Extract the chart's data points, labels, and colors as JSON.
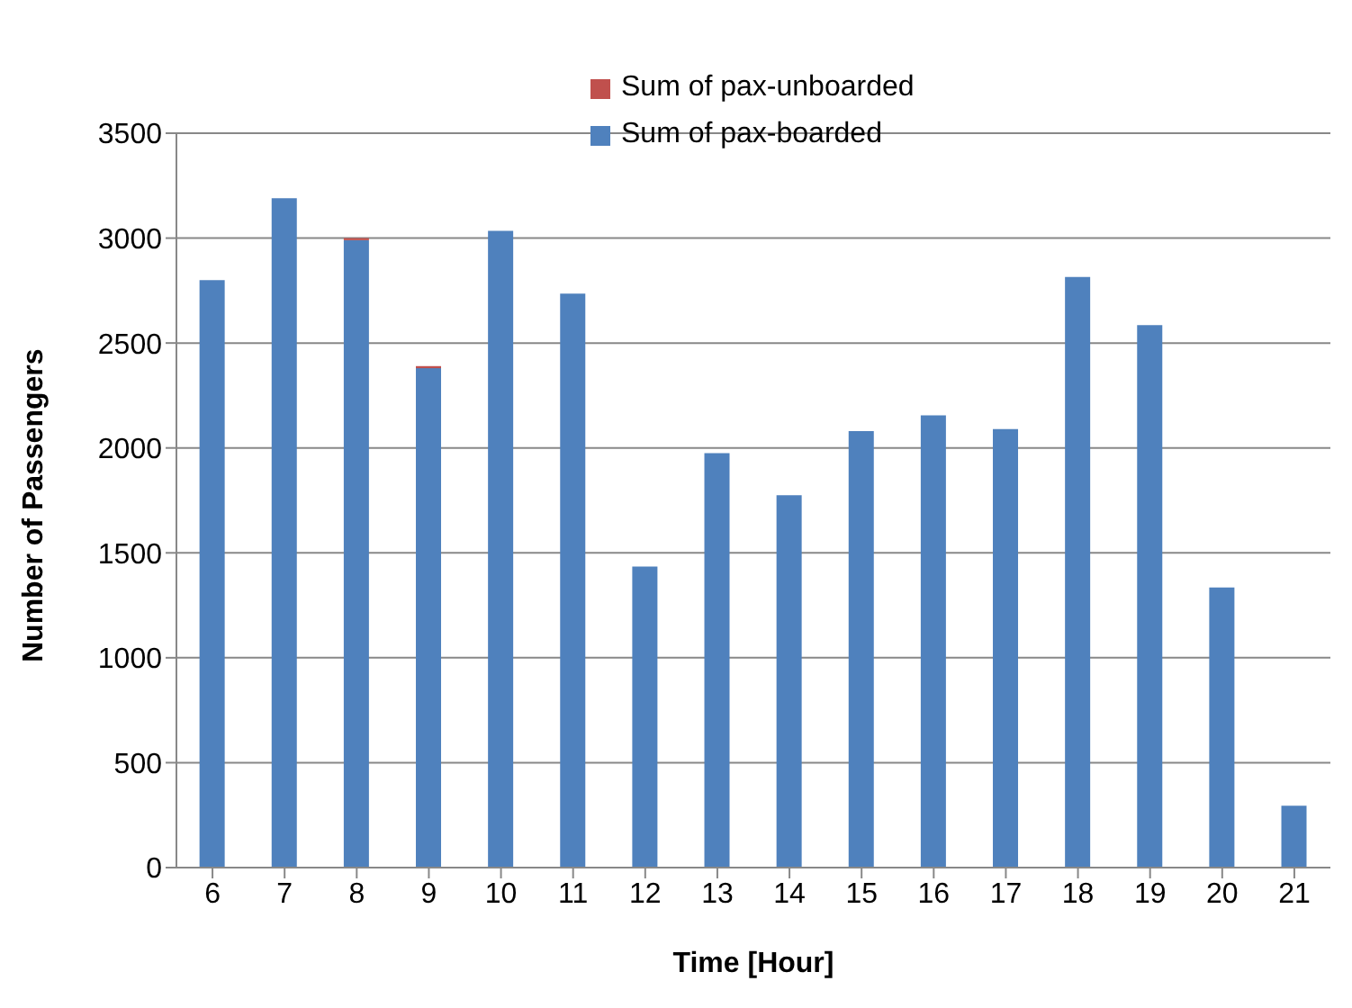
{
  "chart_data": {
    "type": "bar",
    "stacked": true,
    "xlabel": "Time [Hour]",
    "ylabel": "Number of Passengers",
    "categories": [
      "6",
      "7",
      "8",
      "9",
      "10",
      "11",
      "12",
      "13",
      "14",
      "15",
      "16",
      "17",
      "18",
      "19",
      "20",
      "21"
    ],
    "series": [
      {
        "name": "Sum of pax-boarded",
        "color": "#4f81bd",
        "values": [
          2800,
          3190,
          2990,
          2380,
          3035,
          2735,
          1435,
          1975,
          1775,
          2080,
          2155,
          2090,
          2815,
          2585,
          1335,
          295
        ]
      },
      {
        "name": "Sum of pax-unboarded",
        "color": "#c0504d",
        "values": [
          0,
          0,
          10,
          10,
          0,
          0,
          0,
          0,
          0,
          0,
          0,
          0,
          0,
          0,
          0,
          0
        ]
      }
    ],
    "ylim": [
      0,
      3500
    ],
    "yticks": [
      0,
      500,
      1000,
      1500,
      2000,
      2500,
      3000,
      3500
    ],
    "grid": "y",
    "legend": "top"
  }
}
